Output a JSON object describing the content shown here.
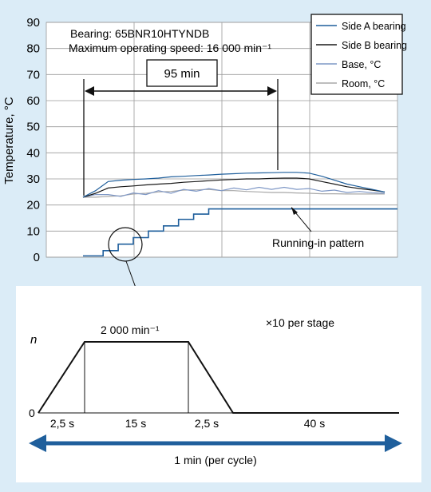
{
  "chart_data": [
    {
      "type": "line",
      "ylabel": "Temperature, °C",
      "ylim": [
        0,
        90
      ],
      "yticks": [
        0,
        10,
        20,
        30,
        40,
        50,
        60,
        70,
        80,
        90
      ],
      "grid": true,
      "legend": {
        "placement": "top-right",
        "entries": [
          {
            "label": "Side A bearing",
            "color": "#1f5f9c"
          },
          {
            "label": "Side B bearing",
            "color": "#1a1a1a"
          },
          {
            "label": "Base, °C",
            "color": "#7f98c6"
          },
          {
            "label": "Room, °C",
            "color": "#a8a8a8"
          }
        ]
      },
      "annotations": {
        "bearing": "Bearing: 65BNR10HTYNDB",
        "max_speed": "Maximum operating speed: 16 000 min⁻¹",
        "duration": "95 min",
        "pattern": "Running-in pattern"
      },
      "x": [
        0,
        5,
        10,
        15,
        20,
        25,
        30,
        35,
        40,
        45,
        50,
        55,
        60,
        65,
        70,
        75,
        80,
        85,
        90,
        95,
        100,
        105,
        110,
        115,
        120
      ],
      "series": [
        {
          "name": "Side A bearing",
          "color": "#1f5f9c",
          "values": [
            23,
            25.5,
            29,
            29.5,
            29.8,
            30,
            30.3,
            30.8,
            31,
            31.3,
            31.5,
            31.8,
            32,
            32.2,
            32.3,
            32.4,
            32.5,
            32.5,
            32.2,
            31,
            29.5,
            28,
            27,
            26,
            25
          ]
        },
        {
          "name": "Side B bearing",
          "color": "#1a1a1a",
          "values": [
            23,
            24.5,
            26.5,
            27,
            27.3,
            27.7,
            28,
            28.3,
            28.7,
            29,
            29.3,
            29.6,
            29.8,
            30,
            30,
            30.2,
            30.3,
            30.3,
            30,
            29,
            28,
            27,
            26.3,
            25.7,
            25
          ]
        },
        {
          "name": "Base, °C",
          "color": "#7f98c6",
          "values": [
            23,
            24,
            24,
            23.3,
            24.6,
            24,
            25.5,
            24.5,
            26,
            25.3,
            26.3,
            25.5,
            26.5,
            25.8,
            26.8,
            26,
            26.8,
            26,
            26.3,
            25.3,
            25.7,
            24.8,
            25.2,
            24.7,
            24.5
          ]
        },
        {
          "name": "Room, °C",
          "color": "#a8a8a8",
          "values": [
            23,
            23,
            23.3,
            23.5,
            24.2,
            24.5,
            25,
            25.2,
            25.7,
            25.8,
            26,
            25.5,
            25.5,
            25.2,
            25,
            24.8,
            24.8,
            24.6,
            24.5,
            24.3,
            24.3,
            24.2,
            24.2,
            24.2,
            24.2
          ]
        }
      ],
      "running_in": {
        "name": "Running-in pattern",
        "color": "#1f5f9c",
        "steps": [
          {
            "x": 0,
            "y": 0.5
          },
          {
            "x": 8,
            "y": 2.5
          },
          {
            "x": 14,
            "y": 5
          },
          {
            "x": 20,
            "y": 7.5
          },
          {
            "x": 26,
            "y": 10
          },
          {
            "x": 32,
            "y": 12
          },
          {
            "x": 38,
            "y": 14.5
          },
          {
            "x": 44,
            "y": 16.5
          },
          {
            "x": 50,
            "y": 18.5
          },
          {
            "x": 120,
            "y": 18.5
          }
        ]
      }
    },
    {
      "type": "line",
      "title": "×10 per stage",
      "ylabel": "n",
      "y0_label": "0",
      "speed_label": "2 000 min⁻¹",
      "segments": [
        "2,5 s",
        "15 s",
        "2,5 s",
        "40 s"
      ],
      "cycle_label": "1 min (per cycle)",
      "cycle_color": "#1f5f9c",
      "profile_x": [
        0,
        2.5,
        17.5,
        20,
        60
      ],
      "profile_y": [
        0,
        2000,
        2000,
        0,
        0
      ]
    }
  ]
}
